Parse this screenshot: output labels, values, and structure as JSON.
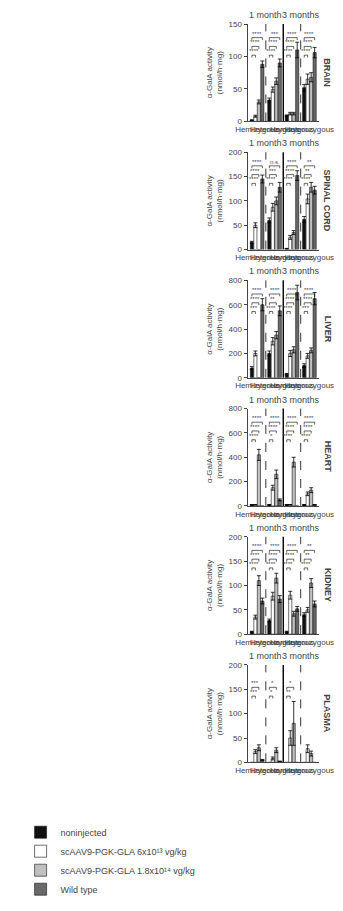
{
  "chart_data": [
    {
      "type": "bar",
      "title": "BRAIN",
      "ylabel": "α-GalA activity\n(nmol/h·mg)",
      "categories": [
        "Hemizygous",
        "Heterozygous",
        "Hemizygous",
        "Heterozygous"
      ],
      "series": [
        {
          "name": "noninjected",
          "color": "#111111",
          "values": [
            2,
            33,
            9,
            52
          ],
          "errors": [
            0.5,
            3,
            1,
            5
          ]
        },
        {
          "name": "scAAV9-PGK-GLA 6x10¹³ vg/kg",
          "color": "#ffffff",
          "values": [
            8,
            49,
            12,
            65
          ],
          "errors": [
            1.5,
            4,
            2,
            8
          ]
        },
        {
          "name": "scAAV9-PGK-GLA 1.8x10¹⁴ vg/kg",
          "color": "#c0c0c0",
          "values": [
            30,
            62,
            12,
            68
          ],
          "errors": [
            3,
            5,
            2,
            7
          ]
        },
        {
          "name": "Wild type",
          "color": "#696969",
          "values": [
            88,
            90,
            110,
            106
          ],
          "errors": [
            5,
            6,
            12,
            8
          ]
        }
      ],
      "significance": [
        [
          "****",
          "****",
          "****"
        ],
        [
          "****",
          "****",
          "***"
        ],
        [
          "****",
          "****",
          "****"
        ],
        [
          "****",
          "****",
          "****"
        ]
      ],
      "annotations": [
        {
          "text": "1 month",
          "x": [
            0,
            1
          ]
        },
        {
          "text": "3 months",
          "x": [
            2,
            3
          ]
        }
      ],
      "ylim": [
        0,
        150
      ],
      "yticks": [
        0,
        50,
        100,
        150
      ],
      "grid": false
    },
    {
      "type": "bar",
      "title": "SPINAL CORD",
      "ylabel": "α-GalA activity\n(nmol/h·mg)",
      "categories": [
        "Hemizygous",
        "Heterozygous",
        "Hemizygous",
        "Heterozygous"
      ],
      "series": [
        {
          "name": "noninjected",
          "color": "#111111",
          "values": [
            15,
            60,
            2,
            62
          ],
          "errors": [
            2,
            5,
            0.5,
            6
          ]
        },
        {
          "name": "scAAV9-PGK-GLA 6x10¹³ vg/kg",
          "color": "#ffffff",
          "values": [
            50,
            87,
            25,
            104
          ],
          "errors": [
            5,
            8,
            4,
            10
          ]
        },
        {
          "name": "scAAV9-PGK-GLA 1.8x10¹⁴ vg/kg",
          "color": "#c0c0c0",
          "values": [
            0,
            100,
            35,
            128
          ],
          "errors": [
            0,
            8,
            4,
            10
          ]
        },
        {
          "name": "Wild type",
          "color": "#696969",
          "values": [
            145,
            128,
            152,
            122
          ],
          "errors": [
            8,
            10,
            10,
            8
          ]
        }
      ],
      "significance": [
        [
          "****",
          "****",
          "****"
        ],
        [
          "****",
          "***",
          "n.s."
        ],
        [
          "****",
          "****",
          "****"
        ],
        [
          "****",
          "**",
          "**"
        ]
      ],
      "annotations": [
        {
          "text": "1 month",
          "x": [
            0,
            1
          ]
        },
        {
          "text": "3 months",
          "x": [
            2,
            3
          ]
        }
      ],
      "ylim": [
        0,
        200
      ],
      "yticks": [
        0,
        50,
        100,
        150,
        200
      ],
      "grid": false
    },
    {
      "type": "bar",
      "title": "LIVER",
      "ylabel": "α-GalA activity\n(nmol/h·mg)",
      "categories": [
        "Hemizygous",
        "Heterozygous",
        "Hemizygous",
        "Heterozygous"
      ],
      "series": [
        {
          "name": "noninjected",
          "color": "#111111",
          "values": [
            80,
            200,
            30,
            100
          ],
          "errors": [
            12,
            20,
            5,
            15
          ]
        },
        {
          "name": "scAAV9-PGK-GLA 6x10¹³ vg/kg",
          "color": "#ffffff",
          "values": [
            200,
            300,
            200,
            180
          ],
          "errors": [
            20,
            30,
            25,
            20
          ]
        },
        {
          "name": "scAAV9-PGK-GLA 1.8x10¹⁴ vg/kg",
          "color": "#c0c0c0",
          "values": [
            0,
            350,
            230,
            225
          ],
          "errors": [
            0,
            30,
            25,
            20
          ]
        },
        {
          "name": "Wild type",
          "color": "#696969",
          "values": [
            600,
            550,
            700,
            650
          ],
          "errors": [
            50,
            40,
            60,
            50
          ]
        }
      ],
      "significance": [
        [
          "***",
          "****",
          "****"
        ],
        [
          "****",
          "**",
          "****"
        ],
        [
          "****",
          "****",
          "****"
        ],
        [
          "***",
          "****",
          "****"
        ]
      ],
      "annotations": [
        {
          "text": "1 month",
          "x": [
            0,
            1
          ]
        },
        {
          "text": "3 months",
          "x": [
            2,
            3
          ]
        }
      ],
      "ylim": [
        0,
        800
      ],
      "yticks": [
        0,
        200,
        400,
        600,
        800
      ],
      "grid": false
    },
    {
      "type": "bar",
      "title": "HEART",
      "ylabel": "α-GalA activity\n(nmol/h·mg)",
      "categories": [
        "Hemizygous",
        "Heterozygous",
        "Hemizygous",
        "Heterozygous"
      ],
      "series": [
        {
          "name": "noninjected",
          "color": "#111111",
          "values": [
            10,
            10,
            10,
            10
          ],
          "errors": [
            2,
            2,
            2,
            2
          ]
        },
        {
          "name": "scAAV9-PGK-GLA 6x10¹³ vg/kg",
          "color": "#ffffff",
          "values": [
            10,
            150,
            10,
            100
          ],
          "errors": [
            2,
            20,
            2,
            15
          ]
        },
        {
          "name": "scAAV9-PGK-GLA 1.8x10¹⁴ vg/kg",
          "color": "#c0c0c0",
          "values": [
            420,
            260,
            360,
            130
          ],
          "errors": [
            45,
            35,
            40,
            20
          ]
        },
        {
          "name": "Wild type",
          "color": "#696969",
          "values": [
            0,
            50,
            0,
            10
          ],
          "errors": [
            0,
            8,
            0,
            2
          ]
        }
      ],
      "significance": [
        [
          "****",
          "****",
          "****"
        ],
        [
          "*",
          "****",
          "****"
        ],
        [
          "****",
          "****",
          "****"
        ],
        [
          "****",
          "****",
          "****"
        ]
      ],
      "annotations": [
        {
          "text": "1 month",
          "x": [
            0,
            1
          ]
        },
        {
          "text": "3 months",
          "x": [
            2,
            3
          ]
        }
      ],
      "ylim": [
        0,
        800
      ],
      "yticks": [
        0,
        200,
        400,
        600,
        800
      ],
      "grid": false
    },
    {
      "type": "bar",
      "title": "KIDNEY",
      "ylabel": "α-GalA activity\n(nmol/h·mg)",
      "categories": [
        "Hemizygous",
        "Heterozygous",
        "Hemizygous",
        "Heterozygous"
      ],
      "series": [
        {
          "name": "noninjected",
          "color": "#111111",
          "values": [
            5,
            28,
            5,
            40
          ],
          "errors": [
            1,
            3,
            1,
            4
          ]
        },
        {
          "name": "scAAV9-PGK-GLA 6x10¹³ vg/kg",
          "color": "#ffffff",
          "values": [
            35,
            78,
            80,
            50
          ],
          "errors": [
            4,
            8,
            8,
            5
          ]
        },
        {
          "name": "scAAV9-PGK-GLA 1.8x10¹⁴ vg/kg",
          "color": "#c0c0c0",
          "values": [
            110,
            115,
            42,
            105
          ],
          "errors": [
            10,
            10,
            5,
            9
          ]
        },
        {
          "name": "Wild type",
          "color": "#696969",
          "values": [
            68,
            72,
            52,
            62
          ],
          "errors": [
            6,
            7,
            5,
            6
          ]
        }
      ],
      "significance": [
        [
          "****",
          "****",
          "****"
        ],
        [
          "****",
          "****",
          "****"
        ],
        [
          "****",
          "****",
          "****"
        ],
        [
          "****",
          "**",
          "**"
        ]
      ],
      "annotations": [
        {
          "text": "1 month",
          "x": [
            0,
            1
          ]
        },
        {
          "text": "3 months",
          "x": [
            2,
            3
          ]
        }
      ],
      "ylim": [
        0,
        200
      ],
      "yticks": [
        0,
        50,
        100,
        150,
        200
      ],
      "grid": false
    },
    {
      "type": "bar",
      "title": "PLASMA",
      "ylabel": "α-GalA activity\n(nmol/h·mg)",
      "categories": [
        "Hemizygous",
        "Heterozygous",
        "Hemizygous",
        "Heterozygous"
      ],
      "series": [
        {
          "name": "noninjected",
          "color": "#111111",
          "values": [
            0,
            0,
            0,
            0
          ],
          "errors": [
            0,
            0,
            0,
            0
          ]
        },
        {
          "name": "scAAV9-PGK-GLA 6x10¹³ vg/kg",
          "color": "#ffffff",
          "values": [
            22,
            8,
            50,
            28
          ],
          "errors": [
            4,
            3,
            15,
            8
          ]
        },
        {
          "name": "scAAV9-PGK-GLA 1.8x10¹⁴ vg/kg",
          "color": "#c0c0c0",
          "values": [
            30,
            25,
            80,
            18
          ],
          "errors": [
            6,
            5,
            45,
            5
          ]
        },
        {
          "name": "Wild type",
          "color": "#696969",
          "values": [
            5,
            2,
            0,
            0
          ],
          "errors": [
            1,
            0.5,
            0,
            0
          ]
        }
      ],
      "significance": [
        [
          "***",
          "***",
          null
        ],
        [
          "*",
          "*",
          null
        ],
        [
          "**",
          "*",
          null
        ],
        [
          null,
          null,
          null
        ]
      ],
      "annotations": [
        {
          "text": "1 month",
          "x": [
            0,
            1
          ]
        },
        {
          "text": "3 months",
          "x": [
            2,
            3
          ]
        }
      ],
      "ylim": [
        0,
        200
      ],
      "yticks": [
        0,
        50,
        100,
        150,
        200
      ],
      "grid": false,
      "legend": "lower left"
    }
  ]
}
